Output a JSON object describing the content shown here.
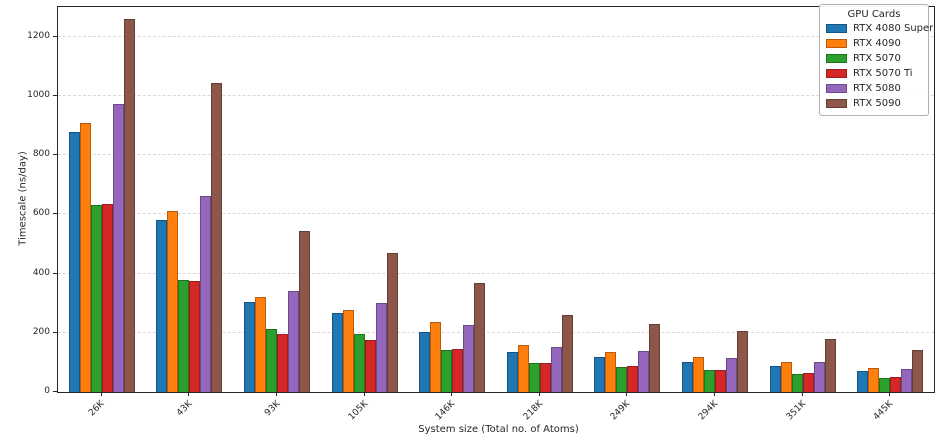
{
  "chart_data": {
    "type": "bar",
    "title": "",
    "xlabel": "System size (Total no. of Atoms)",
    "ylabel": "Timescale (ns/day)",
    "categories": [
      "26K",
      "43K",
      "93K",
      "105K",
      "146K",
      "218K",
      "249K",
      "294K",
      "351K",
      "445K"
    ],
    "series": [
      {
        "name": "RTX 4080 Super",
        "color": "#1f77b4",
        "values": [
          878,
          580,
          303,
          267,
          202,
          135,
          118,
          103,
          88,
          70
        ]
      },
      {
        "name": "RTX 4090",
        "color": "#ff7f0e",
        "values": [
          910,
          610,
          322,
          278,
          235,
          158,
          134,
          119,
          100,
          80
        ]
      },
      {
        "name": "RTX 5070",
        "color": "#2ca02c",
        "values": [
          630,
          377,
          212,
          196,
          143,
          97,
          84,
          73,
          62,
          48
        ]
      },
      {
        "name": "RTX 5070 Ti",
        "color": "#d62728",
        "values": [
          634,
          374,
          196,
          176,
          146,
          98,
          87,
          76,
          64,
          52
        ]
      },
      {
        "name": "RTX 5080",
        "color": "#9467bd",
        "values": [
          972,
          663,
          340,
          301,
          227,
          153,
          137,
          116,
          103,
          78
        ]
      },
      {
        "name": "RTX 5090",
        "color": "#8c564b",
        "values": [
          1260,
          1043,
          545,
          468,
          368,
          260,
          230,
          207,
          178,
          143
        ]
      }
    ],
    "ylim": [
      0,
      1300
    ],
    "yticks": [
      0,
      200,
      400,
      600,
      800,
      1000,
      1200
    ],
    "grid": {
      "axis": "y",
      "style": "dashed",
      "color": "#d8d8d8"
    },
    "legend": {
      "title": "GPU Cards",
      "position": "top-right"
    },
    "spine_color": "#262626"
  }
}
